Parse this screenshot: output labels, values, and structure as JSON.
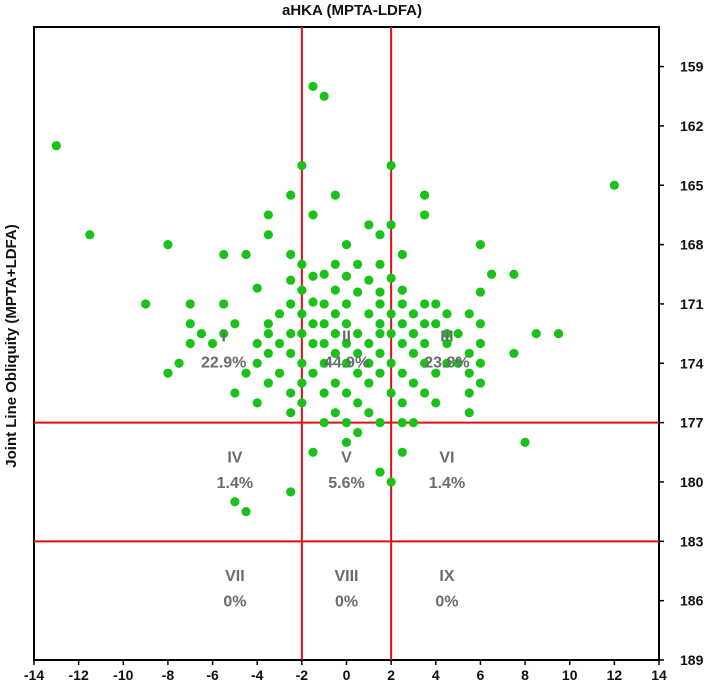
{
  "chart_data": {
    "type": "scatter",
    "title": "aHKA (MPTA-LDFA)",
    "ylabel": "Joint Line Obliquity (MPTA+LDFA)",
    "xlabel": "",
    "xlim": [
      -14,
      14
    ],
    "ylim": [
      189,
      157
    ],
    "y_axis_side": "right",
    "y_inverted": true,
    "xticks": [
      -14,
      -12,
      -10,
      -8,
      -6,
      -4,
      -2,
      0,
      2,
      4,
      6,
      8,
      10,
      12,
      14
    ],
    "yticks": [
      159,
      162,
      165,
      168,
      171,
      174,
      177,
      180,
      183,
      186,
      189
    ],
    "grid": false,
    "reference_lines": {
      "x": [
        -2,
        2
      ],
      "y": [
        177,
        183
      ],
      "color": "#e01010"
    },
    "point_color": "#18c218",
    "zones": [
      {
        "roman": "I",
        "percent": "22.9%",
        "x": -5.5,
        "y_label": 172.6,
        "y_pct": 173.9
      },
      {
        "roman": "II",
        "percent": "44.9%",
        "x": 0,
        "y_label": 172.6,
        "y_pct": 173.9
      },
      {
        "roman": "III",
        "percent": "23.8%",
        "x": 4.5,
        "y_label": 172.6,
        "y_pct": 173.9
      },
      {
        "roman": "IV",
        "percent": "1.4%",
        "x": -5,
        "y_label": 178.7,
        "y_pct": 180.0
      },
      {
        "roman": "V",
        "percent": "5.6%",
        "x": 0,
        "y_label": 178.7,
        "y_pct": 180.0
      },
      {
        "roman": "VI",
        "percent": "1.4%",
        "x": 4.5,
        "y_label": 178.7,
        "y_pct": 180.0
      },
      {
        "roman": "VII",
        "percent": "0%",
        "x": -5,
        "y_label": 184.7,
        "y_pct": 186.0
      },
      {
        "roman": "VIII",
        "percent": "0%",
        "x": 0,
        "y_label": 184.7,
        "y_pct": 186.0
      },
      {
        "roman": "IX",
        "percent": "0%",
        "x": 4.5,
        "y_label": 184.7,
        "y_pct": 186.0
      }
    ],
    "points": [
      {
        "x": -13,
        "y": 163
      },
      {
        "x": -11.5,
        "y": 167.5
      },
      {
        "x": 12,
        "y": 165
      },
      {
        "x": -8,
        "y": 168
      },
      {
        "x": -9,
        "y": 171
      },
      {
        "x": -1.5,
        "y": 160
      },
      {
        "x": -1,
        "y": 160.5
      },
      {
        "x": -2,
        "y": 164
      },
      {
        "x": 2,
        "y": 164
      },
      {
        "x": -2.5,
        "y": 165.5
      },
      {
        "x": -0.5,
        "y": 165.5
      },
      {
        "x": 3.5,
        "y": 165.5
      },
      {
        "x": -3.5,
        "y": 166.5
      },
      {
        "x": -1.5,
        "y": 166.5
      },
      {
        "x": 3.5,
        "y": 166.5
      },
      {
        "x": 1,
        "y": 167
      },
      {
        "x": 2,
        "y": 167
      },
      {
        "x": -3.5,
        "y": 167.5
      },
      {
        "x": 1.5,
        "y": 167.5
      },
      {
        "x": 0,
        "y": 168
      },
      {
        "x": 6,
        "y": 168
      },
      {
        "x": -5.5,
        "y": 168.5
      },
      {
        "x": -4.5,
        "y": 168.5
      },
      {
        "x": -2.5,
        "y": 168.5
      },
      {
        "x": 2.5,
        "y": 168.5
      },
      {
        "x": -2,
        "y": 169
      },
      {
        "x": -0.5,
        "y": 169
      },
      {
        "x": 0.5,
        "y": 169
      },
      {
        "x": 1.5,
        "y": 169
      },
      {
        "x": 6.5,
        "y": 169.5
      },
      {
        "x": 7.5,
        "y": 169.5
      },
      {
        "x": -2.5,
        "y": 169.8
      },
      {
        "x": -1.5,
        "y": 169.6
      },
      {
        "x": -1,
        "y": 169.5
      },
      {
        "x": 0,
        "y": 169.6
      },
      {
        "x": 1,
        "y": 169.8
      },
      {
        "x": 2,
        "y": 169.7
      },
      {
        "x": -4,
        "y": 170.2
      },
      {
        "x": -2,
        "y": 170.3
      },
      {
        "x": -0.5,
        "y": 170.3
      },
      {
        "x": 0.5,
        "y": 170.4
      },
      {
        "x": 1.5,
        "y": 170.4
      },
      {
        "x": 2.5,
        "y": 170.3
      },
      {
        "x": 6,
        "y": 170.4
      },
      {
        "x": -5.5,
        "y": 171
      },
      {
        "x": -7,
        "y": 171
      },
      {
        "x": -2.5,
        "y": 171
      },
      {
        "x": -1.5,
        "y": 170.9
      },
      {
        "x": -1,
        "y": 171
      },
      {
        "x": 0,
        "y": 171
      },
      {
        "x": 1.5,
        "y": 171
      },
      {
        "x": 2.5,
        "y": 171
      },
      {
        "x": 3.5,
        "y": 171
      },
      {
        "x": 4,
        "y": 171
      },
      {
        "x": -3,
        "y": 171.5
      },
      {
        "x": -2,
        "y": 171.5
      },
      {
        "x": -0.5,
        "y": 171.5
      },
      {
        "x": 1,
        "y": 171.5
      },
      {
        "x": 2,
        "y": 171.5
      },
      {
        "x": 3,
        "y": 171.5
      },
      {
        "x": 4.5,
        "y": 171.5
      },
      {
        "x": 5.5,
        "y": 171.5
      },
      {
        "x": -7,
        "y": 172
      },
      {
        "x": -5,
        "y": 172
      },
      {
        "x": -3.5,
        "y": 172
      },
      {
        "x": -1.5,
        "y": 172
      },
      {
        "x": -1,
        "y": 172
      },
      {
        "x": 0,
        "y": 172
      },
      {
        "x": 1.5,
        "y": 172
      },
      {
        "x": 2.5,
        "y": 172
      },
      {
        "x": 3.5,
        "y": 172
      },
      {
        "x": 4,
        "y": 172
      },
      {
        "x": 6,
        "y": 172
      },
      {
        "x": -6.5,
        "y": 172.5
      },
      {
        "x": -5.5,
        "y": 172.5
      },
      {
        "x": -3.5,
        "y": 172.5
      },
      {
        "x": -2.5,
        "y": 172.5
      },
      {
        "x": -2,
        "y": 172.5
      },
      {
        "x": -0.5,
        "y": 172.5
      },
      {
        "x": 0.5,
        "y": 172.5
      },
      {
        "x": 1.5,
        "y": 172.5
      },
      {
        "x": 2,
        "y": 172.5
      },
      {
        "x": 3,
        "y": 172.5
      },
      {
        "x": 4.5,
        "y": 172.5
      },
      {
        "x": 5,
        "y": 172.5
      },
      {
        "x": 8.5,
        "y": 172.5
      },
      {
        "x": 9.5,
        "y": 172.5
      },
      {
        "x": -7,
        "y": 173
      },
      {
        "x": -6,
        "y": 173
      },
      {
        "x": -4,
        "y": 173
      },
      {
        "x": -3,
        "y": 173
      },
      {
        "x": -1.5,
        "y": 173
      },
      {
        "x": -1,
        "y": 173
      },
      {
        "x": 0,
        "y": 173
      },
      {
        "x": 1,
        "y": 173
      },
      {
        "x": 2.5,
        "y": 173
      },
      {
        "x": 3.5,
        "y": 173
      },
      {
        "x": 4.5,
        "y": 173
      },
      {
        "x": 6,
        "y": 173
      },
      {
        "x": -3.5,
        "y": 173.5
      },
      {
        "x": -2.5,
        "y": 173.5
      },
      {
        "x": -0.5,
        "y": 173.5
      },
      {
        "x": 0.5,
        "y": 173.5
      },
      {
        "x": 1.5,
        "y": 173.5
      },
      {
        "x": 3,
        "y": 173.5
      },
      {
        "x": 5.5,
        "y": 173.5
      },
      {
        "x": 7.5,
        "y": 173.5
      },
      {
        "x": -7.5,
        "y": 174
      },
      {
        "x": -4,
        "y": 174
      },
      {
        "x": -2,
        "y": 174
      },
      {
        "x": -1,
        "y": 174
      },
      {
        "x": 0,
        "y": 174
      },
      {
        "x": 1,
        "y": 174
      },
      {
        "x": 2,
        "y": 174
      },
      {
        "x": 3.5,
        "y": 174
      },
      {
        "x": 4.5,
        "y": 174
      },
      {
        "x": 5,
        "y": 174
      },
      {
        "x": 6,
        "y": 174
      },
      {
        "x": -8,
        "y": 174.5
      },
      {
        "x": -4.5,
        "y": 174.5
      },
      {
        "x": -3,
        "y": 174.5
      },
      {
        "x": -1.5,
        "y": 174.5
      },
      {
        "x": 0.5,
        "y": 174.5
      },
      {
        "x": 1.5,
        "y": 174.5
      },
      {
        "x": 2.5,
        "y": 174.5
      },
      {
        "x": 4,
        "y": 174.5
      },
      {
        "x": 5.5,
        "y": 174.5
      },
      {
        "x": -3.5,
        "y": 175
      },
      {
        "x": -2,
        "y": 175
      },
      {
        "x": -0.5,
        "y": 175
      },
      {
        "x": 1,
        "y": 175
      },
      {
        "x": 3,
        "y": 175
      },
      {
        "x": 6,
        "y": 175
      },
      {
        "x": -5,
        "y": 175.5
      },
      {
        "x": -2.5,
        "y": 175.5
      },
      {
        "x": -1,
        "y": 175.5
      },
      {
        "x": 0,
        "y": 175.5
      },
      {
        "x": 2,
        "y": 175.5
      },
      {
        "x": 3.5,
        "y": 175.5
      },
      {
        "x": 5.5,
        "y": 175.5
      },
      {
        "x": -4,
        "y": 176
      },
      {
        "x": -2,
        "y": 176
      },
      {
        "x": 0.5,
        "y": 176
      },
      {
        "x": 2.5,
        "y": 176
      },
      {
        "x": 4,
        "y": 176
      },
      {
        "x": -2.5,
        "y": 176.5
      },
      {
        "x": -0.5,
        "y": 176.5
      },
      {
        "x": 1,
        "y": 176.5
      },
      {
        "x": 5.5,
        "y": 176.5
      },
      {
        "x": -1,
        "y": 177
      },
      {
        "x": 0,
        "y": 177
      },
      {
        "x": 1.5,
        "y": 177
      },
      {
        "x": 2.5,
        "y": 177
      },
      {
        "x": 3,
        "y": 177
      },
      {
        "x": 0.5,
        "y": 177.5
      },
      {
        "x": 0,
        "y": 178
      },
      {
        "x": 8,
        "y": 178
      },
      {
        "x": -1.5,
        "y": 178.5
      },
      {
        "x": 2.5,
        "y": 178.5
      },
      {
        "x": 1.5,
        "y": 179.5
      },
      {
        "x": 2,
        "y": 180
      },
      {
        "x": -2.5,
        "y": 180.5
      },
      {
        "x": -5,
        "y": 181
      },
      {
        "x": -4.5,
        "y": 181.5
      }
    ]
  }
}
